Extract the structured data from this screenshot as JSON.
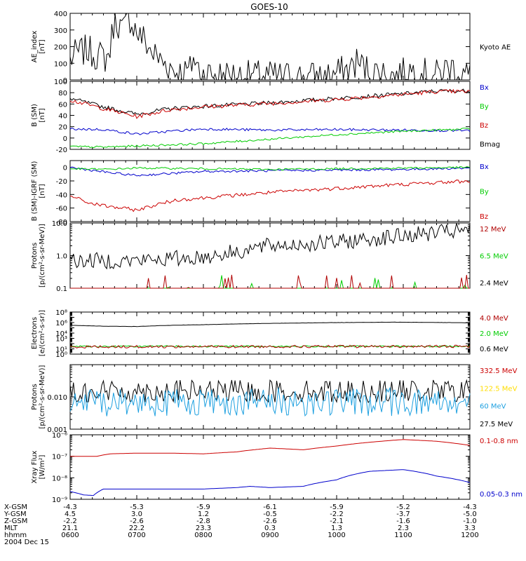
{
  "title": "GOES-10",
  "colors": {
    "black": "#000000",
    "red": "#cc0000",
    "green": "#00cc00",
    "blue": "#0000cc",
    "yellow": "#ffdd00",
    "cyan": "#1ea0e0",
    "dark_red": "#b00000"
  },
  "chart_data": [
    {
      "type": "line",
      "ylabel": [
        "AE_index",
        "[nT]"
      ],
      "ylim": [
        0,
        400
      ],
      "yscale": "linear",
      "yticks": [
        0,
        100,
        200,
        300,
        400
      ],
      "ytick_labels": [
        "0",
        "100",
        "200",
        "300",
        "400"
      ],
      "legend": [
        {
          "label": "Kyoto AE",
          "color": "black"
        }
      ],
      "series": [
        {
          "name": "Kyoto AE",
          "color": "black",
          "noise": 8,
          "x": [
            6.0,
            6.1,
            6.25,
            6.4,
            6.55,
            6.6,
            6.65,
            6.7,
            6.75,
            6.8,
            6.85,
            6.9,
            7.0,
            7.05,
            7.1,
            7.2,
            7.35,
            7.5,
            7.6,
            7.7,
            7.8,
            7.85,
            7.9,
            8.0,
            8.3,
            8.6,
            9.0,
            9.4,
            9.8,
            10.0,
            10.2,
            10.3,
            10.4,
            10.5,
            10.7,
            10.9,
            11.0,
            11.1,
            11.3,
            11.5,
            11.7,
            11.9,
            12.0
          ],
          "y": [
            120,
            160,
            180,
            150,
            130,
            190,
            330,
            360,
            320,
            300,
            340,
            370,
            290,
            260,
            250,
            180,
            120,
            80,
            50,
            40,
            60,
            140,
            80,
            40,
            30,
            25,
            25,
            20,
            20,
            40,
            70,
            110,
            80,
            50,
            40,
            25,
            40,
            60,
            40,
            30,
            80,
            40,
            20
          ]
        }
      ]
    },
    {
      "type": "line",
      "ylabel": [
        "B (SM)",
        "[nT]"
      ],
      "ylim": [
        -20,
        100
      ],
      "yscale": "linear",
      "yticks": [
        -20,
        0,
        20,
        40,
        60,
        80,
        100
      ],
      "ytick_labels": [
        "-20",
        "0",
        "20",
        "40",
        "60",
        "80",
        "100"
      ],
      "legend": [
        {
          "label": "Bx",
          "color": "blue"
        },
        {
          "label": "By",
          "color": "green"
        },
        {
          "label": "Bz",
          "color": "red"
        },
        {
          "label": "Bmag",
          "color": "black"
        }
      ],
      "series": [
        {
          "name": "Bmag",
          "color": "black",
          "noise": 1,
          "x": [
            6.0,
            6.5,
            7.0,
            7.5,
            8.0,
            9.0,
            10.0,
            11.0,
            11.5,
            12.0
          ],
          "y": [
            70,
            55,
            42,
            52,
            56,
            62,
            70,
            78,
            83,
            83
          ]
        },
        {
          "name": "Bz",
          "color": "red",
          "noise": 1,
          "x": [
            6.0,
            6.5,
            7.0,
            7.5,
            8.0,
            9.0,
            10.0,
            11.0,
            11.5,
            12.0
          ],
          "y": [
            67,
            52,
            38,
            50,
            55,
            61,
            68,
            77,
            82,
            82
          ]
        },
        {
          "name": "Bx",
          "color": "blue",
          "noise": 0.6,
          "x": [
            6.0,
            6.5,
            7.0,
            7.5,
            8.0,
            9.0,
            10.0,
            11.0,
            12.0
          ],
          "y": [
            16,
            15,
            7,
            12,
            16,
            14,
            15,
            14,
            13
          ]
        },
        {
          "name": "By",
          "color": "green",
          "noise": 0.5,
          "x": [
            6.0,
            6.5,
            7.0,
            8.0,
            9.0,
            10.0,
            11.0,
            12.0
          ],
          "y": [
            -15,
            -16,
            -14,
            -10,
            -2,
            6,
            12,
            16
          ]
        }
      ]
    },
    {
      "type": "line",
      "ylabel": [
        "B (SM)-IGRF (SM)",
        "[nT]"
      ],
      "ylim": [
        -80,
        10
      ],
      "yscale": "linear",
      "yticks": [
        -80,
        -60,
        -40,
        -20,
        0
      ],
      "ytick_labels": [
        "-80",
        "-60",
        "-40",
        "-20",
        "0"
      ],
      "legend": [
        {
          "label": "Bx",
          "color": "blue"
        },
        {
          "label": "By",
          "color": "green"
        },
        {
          "label": "Bz",
          "color": "red"
        }
      ],
      "series": [
        {
          "name": "Bx",
          "color": "blue",
          "noise": 0.6,
          "x": [
            6.0,
            6.3,
            6.6,
            7.0,
            7.5,
            8.0,
            9.0,
            10.0,
            11.0,
            12.0
          ],
          "y": [
            0,
            -4,
            -8,
            -12,
            -9,
            -6,
            -5,
            -4,
            -3,
            -1
          ]
        },
        {
          "name": "By",
          "color": "green",
          "noise": 0.5,
          "x": [
            6.0,
            6.5,
            7.0,
            8.0,
            9.0,
            10.0,
            11.0,
            12.0
          ],
          "y": [
            -2,
            -3,
            -1,
            -2,
            -3,
            -2,
            -1,
            0
          ]
        },
        {
          "name": "Bz",
          "color": "red",
          "noise": 1,
          "x": [
            6.0,
            6.3,
            6.6,
            7.0,
            7.3,
            7.6,
            8.0,
            9.0,
            10.0,
            11.0,
            12.0
          ],
          "y": [
            -42,
            -53,
            -58,
            -63,
            -55,
            -48,
            -45,
            -37,
            -31,
            -25,
            -20
          ]
        }
      ]
    },
    {
      "type": "line",
      "ylabel": [
        "Protons",
        "[p/(cm²-s-sr-MeV)]"
      ],
      "ylim": [
        0.1,
        10
      ],
      "yscale": "log",
      "yticks": [
        0.1,
        1,
        10
      ],
      "ytick_labels": [
        "0.1",
        "1.0",
        "10.0"
      ],
      "legend": [
        {
          "label": "12 MeV",
          "color": "dark_red"
        },
        {
          "label": "6.5 MeV",
          "color": "green"
        },
        {
          "label": "2.4 MeV",
          "color": "black"
        }
      ],
      "series": [
        {
          "name": "2.4 MeV",
          "color": "black",
          "noise": 0.25,
          "spiky": true,
          "x": [
            6.0,
            7.0,
            8.0,
            8.5,
            9.0,
            10.0,
            11.0,
            12.0
          ],
          "y": [
            0.7,
            0.7,
            0.9,
            1.3,
            2.0,
            2.5,
            4.0,
            6.0
          ]
        },
        {
          "name": "6.5 MeV",
          "color": "green",
          "noise": 0,
          "spiky": true,
          "x": [
            6.0,
            12.0
          ],
          "y": [
            0.1,
            0.1
          ]
        },
        {
          "name": "12 MeV",
          "color": "dark_red",
          "noise": 0,
          "spiky": true,
          "x": [
            6.0,
            12.0
          ],
          "y": [
            0.1,
            0.1
          ]
        }
      ]
    },
    {
      "type": "line",
      "ylabel": [
        "Electrons",
        "[e/(cm²-s-sr)]"
      ],
      "ylim": [
        1,
        100000000
      ],
      "yscale": "log",
      "yticks": [
        1,
        10,
        100,
        1000,
        10000,
        100000,
        1000000,
        10000000,
        100000000
      ],
      "ytick_labels": [
        "10⁰",
        "10¹",
        "",
        "10³",
        "10⁴",
        "",
        "10⁶",
        "",
        "10⁸"
      ],
      "legend": [
        {
          "label": "4.0 MeV",
          "color": "dark_red"
        },
        {
          "label": "2.0 MeV",
          "color": "green"
        },
        {
          "label": "0.6 MeV",
          "color": "black"
        }
      ],
      "series": [
        {
          "name": "0.6 MeV",
          "color": "black",
          "noise": 0.02,
          "x": [
            6.0,
            6.5,
            7.0,
            8.0,
            9.0,
            10.0,
            11.0,
            12.0
          ],
          "y": [
            300000,
            200000,
            180000,
            400000,
            700000,
            1000000,
            1200000,
            900000
          ]
        },
        {
          "name": "2.0 MeV",
          "color": "green",
          "noise": 0.15,
          "x": [
            6.0,
            12.0
          ],
          "y": [
            30,
            30
          ]
        },
        {
          "name": "4.0 MeV",
          "color": "dark_red",
          "noise": 0.25,
          "x": [
            6.0,
            12.0
          ],
          "y": [
            25,
            30
          ]
        }
      ]
    },
    {
      "type": "line",
      "ylabel": [
        "Protons",
        "[p/(cm²-s-sr-MeV)]"
      ],
      "ylim": [
        0.001,
        0.1
      ],
      "yscale": "log",
      "yticks": [
        0.001,
        0.01
      ],
      "ytick_labels": [
        "0.001",
        "0.010"
      ],
      "legend": [
        {
          "label": "332.5 MeV",
          "color": "red"
        },
        {
          "label": "122.5 MeV",
          "color": "yellow"
        },
        {
          "label": "60 MeV",
          "color": "cyan"
        },
        {
          "label": "27.5 MeV",
          "color": "black"
        }
      ],
      "series": [
        {
          "name": "27.5 MeV",
          "color": "black",
          "noise": 0.35,
          "x": [
            6.0,
            12.0
          ],
          "y": [
            0.015,
            0.015
          ]
        },
        {
          "name": "60 MeV",
          "color": "cyan",
          "noise": 0.45,
          "x": [
            6.0,
            12.0
          ],
          "y": [
            0.007,
            0.007
          ]
        }
      ]
    },
    {
      "type": "line",
      "ylabel": [
        "Xray Flux",
        "[W/m²]"
      ],
      "ylim": [
        1e-09,
        1e-06
      ],
      "yscale": "log",
      "yticks": [
        1e-09,
        1e-08,
        1e-07,
        1e-06
      ],
      "ytick_labels": [
        "10⁻⁹",
        "10⁻⁸",
        "10⁻⁷",
        "10⁻⁶"
      ],
      "legend": [
        {
          "label": "0.1-0.8 nm",
          "color": "red"
        },
        {
          "label": "0.05-0.3 nm",
          "color": "blue"
        }
      ],
      "series": [
        {
          "name": "0.1-0.8 nm",
          "color": "red",
          "noise": 0,
          "x": [
            6.0,
            6.4,
            6.6,
            7.0,
            7.5,
            8.0,
            8.5,
            9.0,
            9.5,
            10.0,
            10.5,
            11.0,
            11.5,
            12.0
          ],
          "y": [
            1e-07,
            1e-07,
            1.3e-07,
            1.4e-07,
            1.4e-07,
            1.3e-07,
            1.6e-07,
            2.4e-07,
            2e-07,
            3e-07,
            4.5e-07,
            6e-07,
            5e-07,
            3.2e-07
          ]
        },
        {
          "name": "0.05-0.3 nm",
          "color": "blue",
          "noise": 0,
          "x": [
            6.0,
            6.2,
            6.35,
            6.5,
            7.0,
            8.0,
            8.5,
            8.7,
            9.0,
            9.5,
            10.0,
            10.5,
            11.0,
            11.5,
            12.0
          ],
          "y": [
            2.3e-09,
            1.6e-09,
            1.5e-09,
            3e-09,
            3e-09,
            3e-09,
            3.5e-09,
            4e-09,
            3.5e-09,
            4e-09,
            8e-09,
            2e-08,
            2.4e-08,
            1.2e-08,
            6e-09
          ]
        }
      ]
    }
  ],
  "xaxis": {
    "range": [
      6,
      12
    ],
    "row_labels": [
      "X-GSM",
      "Y-GSM",
      "Z-GSM",
      "MLT",
      "hhmm"
    ],
    "columns": [
      {
        "x": 6,
        "values": [
          "-4.3",
          "4.5",
          "-2.2",
          "21.1",
          "0600"
        ]
      },
      {
        "x": 7,
        "values": [
          "-5.3",
          "3.0",
          "-2.6",
          "22.2",
          "0700"
        ]
      },
      {
        "x": 8,
        "values": [
          "-5.9",
          "1.2",
          "-2.8",
          "23.3",
          "0800"
        ]
      },
      {
        "x": 9,
        "values": [
          "-6.1",
          "-0.5",
          "-2.6",
          "0.3",
          "0900"
        ]
      },
      {
        "x": 10,
        "values": [
          "-5.9",
          "-2.2",
          "-2.1",
          "1.3",
          "1000"
        ]
      },
      {
        "x": 11,
        "values": [
          "-5.2",
          "-3.7",
          "-1.6",
          "2.3",
          "1100"
        ]
      },
      {
        "x": 12,
        "values": [
          "-4.3",
          "-5.0",
          "-1.0",
          "3.3",
          "1200"
        ]
      }
    ],
    "date": "2004 Dec 15"
  }
}
